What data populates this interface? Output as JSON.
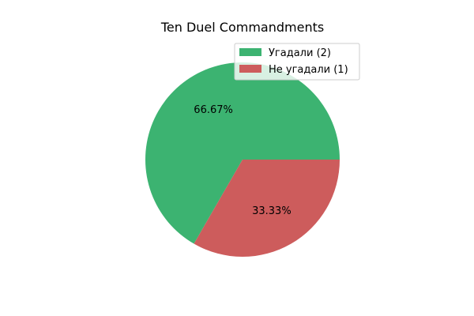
{
  "chart_data": {
    "type": "pie",
    "title": "Ten Duel Commandments",
    "slices": [
      {
        "label": "Угадали (2)",
        "value": 2,
        "percent_label": "66.67%",
        "color": "#3CB371"
      },
      {
        "label": "Не угадали (1)",
        "value": 1,
        "percent_label": "33.33%",
        "color": "#CD5C5C"
      }
    ],
    "start_angle_deg": 0,
    "direction": "counterclockwise",
    "legend": {
      "placement": "upper-right"
    }
  }
}
